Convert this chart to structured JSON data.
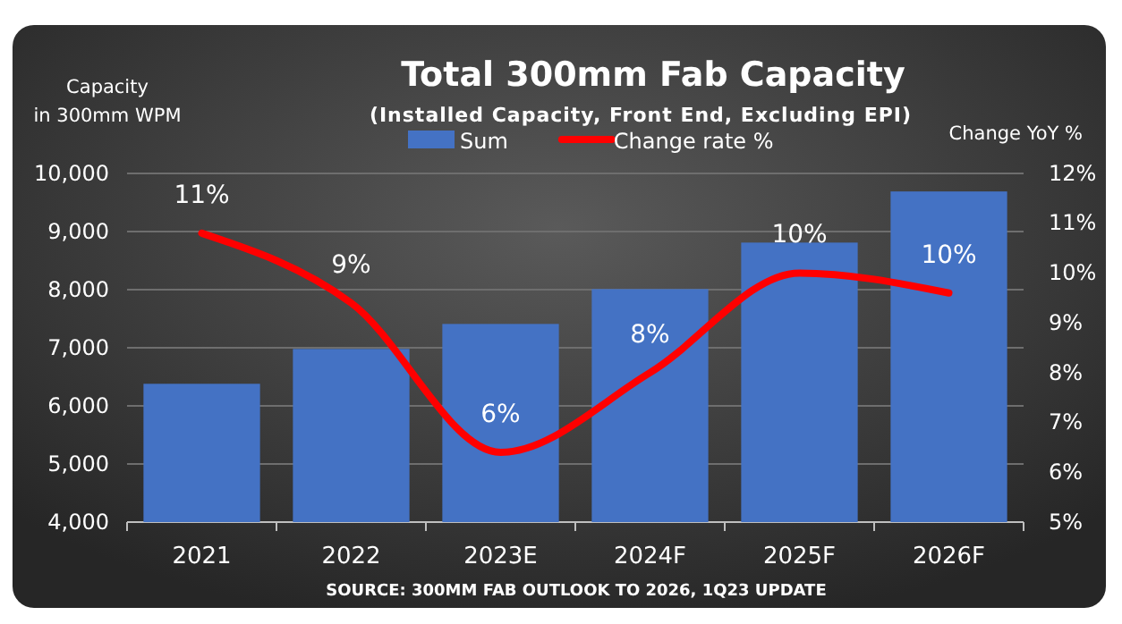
{
  "chart_data": {
    "type": "bar",
    "title": "Total 300mm Fab Capacity",
    "subtitle": "(Installed Capacity, Front End, Excluding EPI)",
    "ylabel": "Capacity\nin 300mm WPM",
    "y2label": "Change YoY %",
    "categories": [
      "2021",
      "2022",
      "2023E",
      "2024F",
      "2025F",
      "2026F"
    ],
    "series": [
      {
        "name": "Sum",
        "color": "#4472c4",
        "values": [
          6380,
          6980,
          7410,
          8010,
          8810,
          9690
        ]
      },
      {
        "name": "Change rate %",
        "type": "line",
        "axis": "y2",
        "color": "#ff0000",
        "marker": "none",
        "values": [
          10.8,
          9.4,
          6.4,
          8.0,
          10.0,
          9.6
        ],
        "value_labels": [
          "11%",
          "9%",
          "6%",
          "8%",
          "10%",
          "10%"
        ]
      }
    ],
    "ylim": [
      4000,
      10000
    ],
    "yticks": [
      {
        "value": 4000,
        "label": "4,000"
      },
      {
        "value": 5000,
        "label": "5,000"
      },
      {
        "value": 6000,
        "label": "6,000"
      },
      {
        "value": 7000,
        "label": "7,000"
      },
      {
        "value": 8000,
        "label": "8,000"
      },
      {
        "value": 9000,
        "label": "9,000"
      },
      {
        "value": 10000,
        "label": "10,000"
      }
    ],
    "y2lim": [
      5,
      12
    ],
    "y2ticks": [
      {
        "value": 5,
        "label": "5%"
      },
      {
        "value": 6,
        "label": "6%"
      },
      {
        "value": 7,
        "label": "7%"
      },
      {
        "value": 8,
        "label": "8%"
      },
      {
        "value": 9,
        "label": "9%"
      },
      {
        "value": 10,
        "label": "10%"
      },
      {
        "value": 11,
        "label": "11%"
      },
      {
        "value": 12,
        "label": "12%"
      }
    ],
    "grid": "y",
    "legend": "top",
    "annotations": [
      "SOURCE: 300MM FAB OUTLOOK TO 2026, 1Q23 UPDATE"
    ]
  }
}
